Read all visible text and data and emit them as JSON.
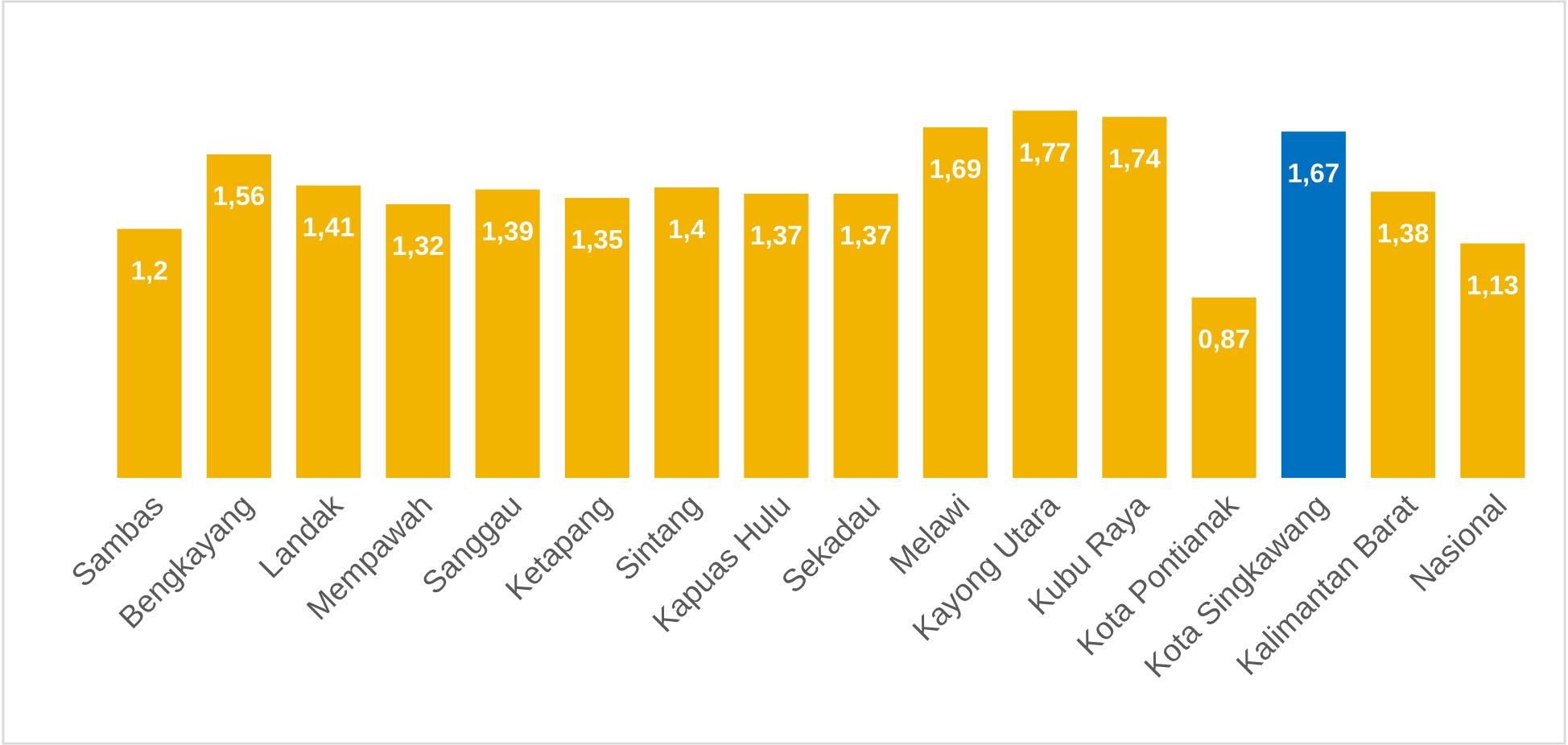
{
  "chart_data": {
    "type": "bar",
    "categories": [
      "Sambas",
      "Bengkayang",
      "Landak",
      "Mempawah",
      "Sanggau",
      "Ketapang",
      "Sintang",
      "Kapuas Hulu",
      "Sekadau",
      "Melawi",
      "Kayong Utara",
      "Kubu Raya",
      "Kota Pontianak",
      "Kota Singkawang",
      "Kalimantan Barat",
      "Nasional"
    ],
    "values": [
      1.2,
      1.56,
      1.41,
      1.32,
      1.39,
      1.35,
      1.4,
      1.37,
      1.37,
      1.69,
      1.77,
      1.74,
      0.87,
      1.67,
      1.38,
      1.13
    ],
    "value_labels": [
      "1,2",
      "1,56",
      "1,41",
      "1,32",
      "1,39",
      "1,35",
      "1,4",
      "1,37",
      "1,37",
      "1,69",
      "1,77",
      "1,74",
      "0,87",
      "1,67",
      "1,38",
      "1,13"
    ],
    "colors": [
      "#f2b400",
      "#f2b400",
      "#f2b400",
      "#f2b400",
      "#f2b400",
      "#f2b400",
      "#f2b400",
      "#f2b400",
      "#f2b400",
      "#f2b400",
      "#f2b400",
      "#f2b400",
      "#f2b400",
      "#0070c0",
      "#f2b400",
      "#f2b400"
    ],
    "grid": false,
    "legend": false
  }
}
